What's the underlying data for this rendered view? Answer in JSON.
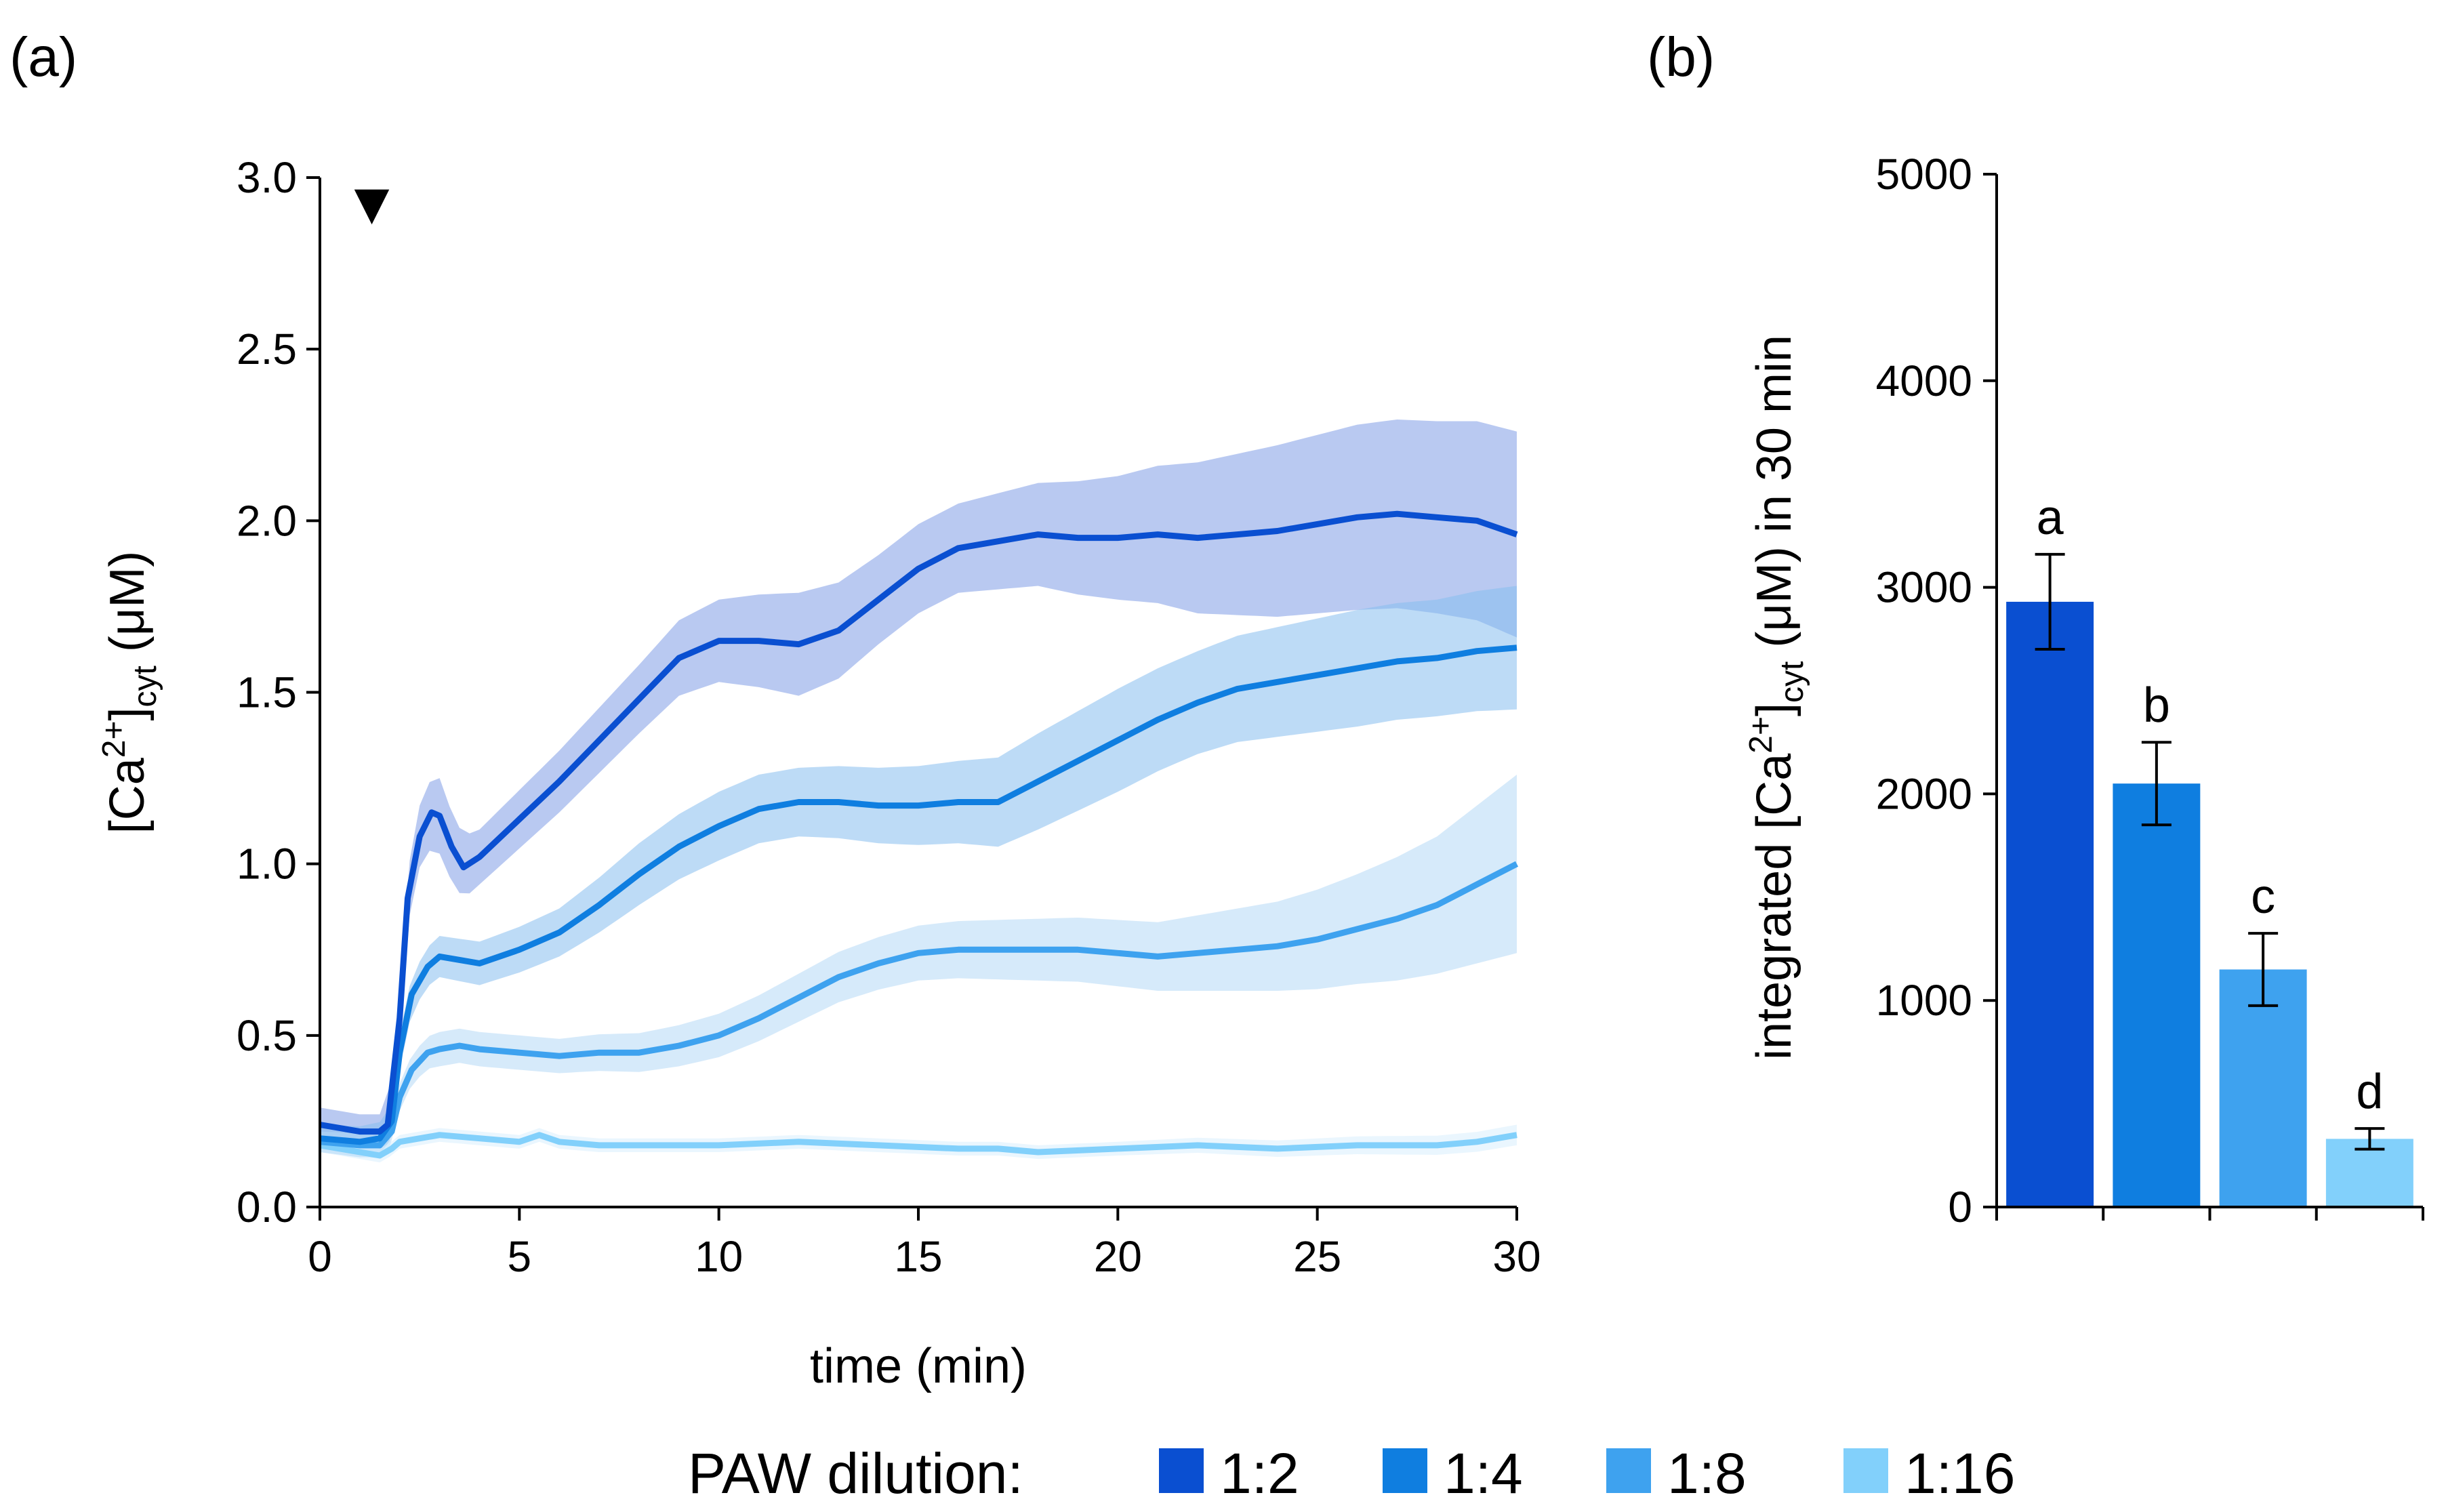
{
  "panel_labels": {
    "a": "(a)",
    "b": "(b)"
  },
  "legend": {
    "title": "PAW dilution:",
    "entries": [
      {
        "label": "1:2",
        "color": "#0a4fd1"
      },
      {
        "label": "1:4",
        "color": "#0f7ee0"
      },
      {
        "label": "1:8",
        "color": "#3ea2ef"
      },
      {
        "label": "1:16",
        "color": "#82d0fb"
      }
    ]
  },
  "chart_data": [
    {
      "type": "line",
      "panel": "(a)",
      "xlabel": "time (min)",
      "ylabel": {
        "main": "[Ca",
        "sup": "2+",
        "close": "]",
        "sub": "cyt",
        "unit": " (μM)"
      },
      "xlim": [
        0,
        30
      ],
      "ylim": [
        0,
        3.0
      ],
      "x_ticks": [
        "0",
        "5",
        "10",
        "15",
        "20",
        "25",
        "30"
      ],
      "y_ticks": [
        "0.0",
        "0.5",
        "1.0",
        "1.5",
        "2.0",
        "2.5",
        "3.0"
      ],
      "treatment_marker": {
        "x": 1.3,
        "symbol": "▼"
      },
      "series": [
        {
          "name": "1:2",
          "color": "#0a4fd1",
          "band_color": "#7f9de6",
          "points": [
            [
              0,
              0.24
            ],
            [
              0.5,
              0.23
            ],
            [
              1,
              0.22
            ],
            [
              1.5,
              0.22
            ],
            [
              1.7,
              0.24
            ],
            [
              2,
              0.55
            ],
            [
              2.2,
              0.9
            ],
            [
              2.5,
              1.08
            ],
            [
              2.8,
              1.15
            ],
            [
              3.0,
              1.14
            ],
            [
              3.3,
              1.05
            ],
            [
              3.6,
              0.99
            ],
            [
              4,
              1.02
            ],
            [
              5,
              1.13
            ],
            [
              6,
              1.24
            ],
            [
              7,
              1.36
            ],
            [
              8,
              1.48
            ],
            [
              9,
              1.6
            ],
            [
              10,
              1.65
            ],
            [
              11,
              1.65
            ],
            [
              12,
              1.64
            ],
            [
              13,
              1.68
            ],
            [
              14,
              1.77
            ],
            [
              15,
              1.86
            ],
            [
              16,
              1.92
            ],
            [
              17,
              1.94
            ],
            [
              18,
              1.96
            ],
            [
              19,
              1.95
            ],
            [
              20,
              1.95
            ],
            [
              21,
              1.96
            ],
            [
              22,
              1.95
            ],
            [
              23,
              1.96
            ],
            [
              24,
              1.97
            ],
            [
              25,
              1.99
            ],
            [
              26,
              2.01
            ],
            [
              27,
              2.02
            ],
            [
              28,
              2.01
            ],
            [
              29,
              2.0
            ],
            [
              30,
              1.96
            ]
          ],
          "error": [
            [
              0,
              0.05
            ],
            [
              1.5,
              0.05
            ],
            [
              2.5,
              0.09
            ],
            [
              3,
              0.11
            ],
            [
              4,
              0.08
            ],
            [
              6,
              0.09
            ],
            [
              8,
              0.1
            ],
            [
              10,
              0.12
            ],
            [
              12,
              0.15
            ],
            [
              14,
              0.13
            ],
            [
              16,
              0.13
            ],
            [
              18,
              0.15
            ],
            [
              20,
              0.18
            ],
            [
              22,
              0.22
            ],
            [
              24,
              0.25
            ],
            [
              26,
              0.27
            ],
            [
              28,
              0.28
            ],
            [
              30,
              0.3
            ]
          ]
        },
        {
          "name": "1:4",
          "color": "#0f7ee0",
          "band_color": "#86bdee",
          "points": [
            [
              0,
              0.2
            ],
            [
              1,
              0.19
            ],
            [
              1.5,
              0.2
            ],
            [
              1.8,
              0.25
            ],
            [
              2,
              0.45
            ],
            [
              2.3,
              0.62
            ],
            [
              2.7,
              0.7
            ],
            [
              3,
              0.73
            ],
            [
              3.5,
              0.72
            ],
            [
              4,
              0.71
            ],
            [
              5,
              0.75
            ],
            [
              6,
              0.8
            ],
            [
              7,
              0.88
            ],
            [
              8,
              0.97
            ],
            [
              9,
              1.05
            ],
            [
              10,
              1.11
            ],
            [
              11,
              1.16
            ],
            [
              12,
              1.18
            ],
            [
              13,
              1.18
            ],
            [
              14,
              1.17
            ],
            [
              15,
              1.17
            ],
            [
              16,
              1.18
            ],
            [
              17,
              1.18
            ],
            [
              18,
              1.24
            ],
            [
              19,
              1.3
            ],
            [
              20,
              1.36
            ],
            [
              21,
              1.42
            ],
            [
              22,
              1.47
            ],
            [
              23,
              1.51
            ],
            [
              24,
              1.53
            ],
            [
              25,
              1.55
            ],
            [
              26,
              1.57
            ],
            [
              27,
              1.59
            ],
            [
              28,
              1.6
            ],
            [
              29,
              1.62
            ],
            [
              30,
              1.63
            ]
          ],
          "error": [
            [
              0,
              0.04
            ],
            [
              2,
              0.05
            ],
            [
              3,
              0.06
            ],
            [
              6,
              0.07
            ],
            [
              8,
              0.09
            ],
            [
              10,
              0.1
            ],
            [
              12,
              0.1
            ],
            [
              14,
              0.11
            ],
            [
              16,
              0.12
            ],
            [
              18,
              0.14
            ],
            [
              20,
              0.15
            ],
            [
              22,
              0.15
            ],
            [
              24,
              0.16
            ],
            [
              26,
              0.17
            ],
            [
              28,
              0.17
            ],
            [
              30,
              0.18
            ]
          ]
        },
        {
          "name": "1:8",
          "color": "#3ea2ef",
          "band_color": "#b4d8f6",
          "points": [
            [
              0,
              0.19
            ],
            [
              1,
              0.18
            ],
            [
              1.5,
              0.18
            ],
            [
              1.8,
              0.22
            ],
            [
              2,
              0.32
            ],
            [
              2.3,
              0.4
            ],
            [
              2.7,
              0.45
            ],
            [
              3,
              0.46
            ],
            [
              3.5,
              0.47
            ],
            [
              4,
              0.46
            ],
            [
              5,
              0.45
            ],
            [
              6,
              0.44
            ],
            [
              7,
              0.45
            ],
            [
              8,
              0.45
            ],
            [
              9,
              0.47
            ],
            [
              10,
              0.5
            ],
            [
              11,
              0.55
            ],
            [
              12,
              0.61
            ],
            [
              13,
              0.67
            ],
            [
              14,
              0.71
            ],
            [
              15,
              0.74
            ],
            [
              16,
              0.75
            ],
            [
              17,
              0.75
            ],
            [
              18,
              0.75
            ],
            [
              19,
              0.75
            ],
            [
              20,
              0.74
            ],
            [
              21,
              0.73
            ],
            [
              22,
              0.74
            ],
            [
              23,
              0.75
            ],
            [
              24,
              0.76
            ],
            [
              25,
              0.78
            ],
            [
              26,
              0.81
            ],
            [
              27,
              0.84
            ],
            [
              28,
              0.88
            ],
            [
              29,
              0.94
            ],
            [
              30,
              1.0
            ]
          ],
          "error": [
            [
              0,
              0.03
            ],
            [
              2,
              0.04
            ],
            [
              3,
              0.05
            ],
            [
              6,
              0.05
            ],
            [
              9,
              0.06
            ],
            [
              12,
              0.07
            ],
            [
              15,
              0.08
            ],
            [
              18,
              0.09
            ],
            [
              21,
              0.1
            ],
            [
              24,
              0.13
            ],
            [
              26,
              0.16
            ],
            [
              28,
              0.2
            ],
            [
              30,
              0.26
            ]
          ]
        },
        {
          "name": "1:16",
          "color": "#82d0fb",
          "band_color": "#d9effd",
          "points": [
            [
              0,
              0.18
            ],
            [
              1,
              0.16
            ],
            [
              1.5,
              0.15
            ],
            [
              1.8,
              0.17
            ],
            [
              2,
              0.19
            ],
            [
              3,
              0.21
            ],
            [
              4,
              0.2
            ],
            [
              5,
              0.19
            ],
            [
              5.5,
              0.21
            ],
            [
              6,
              0.19
            ],
            [
              7,
              0.18
            ],
            [
              8,
              0.18
            ],
            [
              10,
              0.18
            ],
            [
              12,
              0.19
            ],
            [
              14,
              0.18
            ],
            [
              16,
              0.17
            ],
            [
              17,
              0.17
            ],
            [
              18,
              0.16
            ],
            [
              20,
              0.17
            ],
            [
              22,
              0.18
            ],
            [
              24,
              0.17
            ],
            [
              26,
              0.18
            ],
            [
              28,
              0.18
            ],
            [
              29,
              0.19
            ],
            [
              30,
              0.21
            ]
          ],
          "error": [
            [
              0,
              0.02
            ],
            [
              10,
              0.02
            ],
            [
              20,
              0.02
            ],
            [
              30,
              0.03
            ]
          ]
        }
      ]
    },
    {
      "type": "bar",
      "panel": "(b)",
      "ylabel": {
        "pre": "integrated [Ca",
        "sup": "2+",
        "close": "]",
        "sub": "cyt",
        "post": " (μM) in 30 min"
      },
      "ylim": [
        0,
        5000
      ],
      "y_ticks": [
        "0",
        "1000",
        "2000",
        "3000",
        "4000",
        "5000"
      ],
      "categories": [
        "1:2",
        "1:4",
        "1:8",
        "1:16"
      ],
      "values": [
        2930,
        2050,
        1150,
        330
      ],
      "errors": [
        230,
        200,
        175,
        50
      ],
      "significance": [
        "a",
        "b",
        "c",
        "d"
      ],
      "colors": [
        "#0a4fd1",
        "#0f7ee0",
        "#3ea2ef",
        "#82d0fb"
      ]
    }
  ]
}
